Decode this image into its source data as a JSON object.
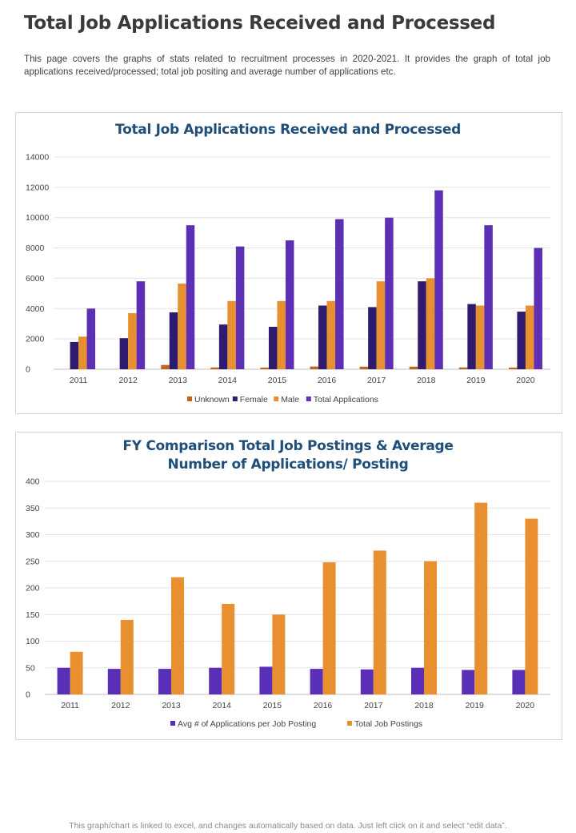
{
  "page": {
    "title": "Total Job Applications Received and Processed",
    "intro": "This page covers the graphs of stats related to recruitment processes in 2020-2021. It provides the graph of total job applications received/processed; total job positing and average number of applications etc.",
    "footer": "This graph/chart is linked to excel, and changes automatically based on data. Just left click on it and select “edit data”."
  },
  "chart_data": [
    {
      "type": "bar",
      "title": "Total Job Applications Received and Processed",
      "categories": [
        "2011",
        "2012",
        "2013",
        "2014",
        "2015",
        "2016",
        "2017",
        "2018",
        "2019",
        "2020"
      ],
      "series": [
        {
          "name": "Unknown",
          "color": "#c0651f",
          "values": [
            0,
            0,
            280,
            120,
            110,
            180,
            170,
            170,
            120,
            110
          ]
        },
        {
          "name": "Female",
          "color": "#2e1a6e",
          "values": [
            1800,
            2050,
            3750,
            2950,
            2800,
            4200,
            4100,
            5800,
            4300,
            3800
          ]
        },
        {
          "name": "Male",
          "color": "#e8902f",
          "values": [
            2150,
            3700,
            5650,
            4500,
            4500,
            4500,
            5800,
            6000,
            4200,
            4200
          ]
        },
        {
          "name": "Total Applications",
          "color": "#5c2fb5",
          "values": [
            4000,
            5800,
            9500,
            8100,
            8500,
            9900,
            10000,
            11800,
            9500,
            8000
          ]
        }
      ],
      "ylim": [
        0,
        14000
      ],
      "yticks": [
        0,
        2000,
        4000,
        6000,
        8000,
        10000,
        12000,
        14000
      ],
      "xlabel": "",
      "ylabel": "",
      "grid": true,
      "legend": "bottom"
    },
    {
      "type": "bar",
      "title": "FY Comparison Total Job Postings & Average Number of Applications/ Posting",
      "title_lines": [
        "FY Comparison Total Job Postings & Average",
        "Number of Applications/ Posting"
      ],
      "categories": [
        "2011",
        "2012",
        "2013",
        "2014",
        "2015",
        "2016",
        "2017",
        "2018",
        "2019",
        "2020"
      ],
      "series": [
        {
          "name": "Avg # of Applications per Job Posting",
          "color": "#5a2fb8",
          "values": [
            50,
            48,
            48,
            50,
            52,
            48,
            47,
            50,
            46,
            46
          ]
        },
        {
          "name": "Total Job Postings",
          "color": "#e8902f",
          "values": [
            80,
            140,
            220,
            170,
            150,
            248,
            270,
            250,
            360,
            330
          ]
        }
      ],
      "ylim": [
        0,
        400
      ],
      "yticks": [
        0,
        50,
        100,
        150,
        200,
        250,
        300,
        350,
        400
      ],
      "xlabel": "",
      "ylabel": "",
      "grid": true,
      "legend": "bottom"
    }
  ]
}
